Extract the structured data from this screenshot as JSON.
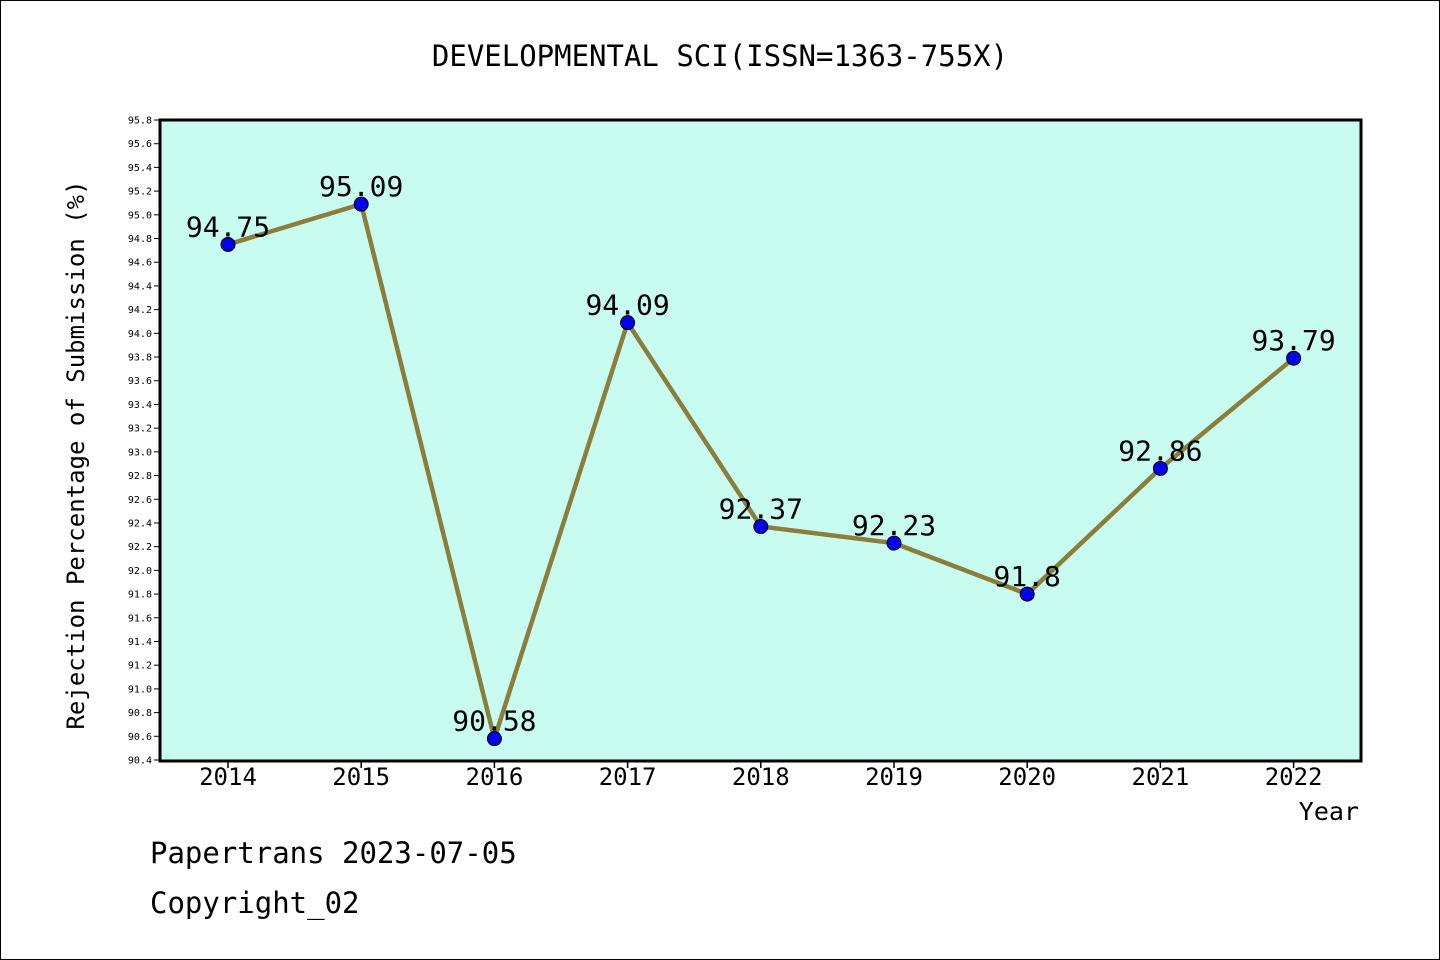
{
  "chart_data": {
    "type": "line",
    "title": "DEVELOPMENTAL SCI(ISSN=1363-755X)",
    "xlabel": "Year",
    "ylabel": "Rejection Percentage of Submission (%)",
    "categories": [
      "2014",
      "2015",
      "2016",
      "2017",
      "2018",
      "2019",
      "2020",
      "2021",
      "2022"
    ],
    "series": [
      {
        "values": [
          94.75,
          95.09,
          90.58,
          94.09,
          92.37,
          92.23,
          91.8,
          92.86,
          93.79
        ],
        "labels": [
          "94.75",
          "95.09",
          "90.58",
          "94.09",
          "92.37",
          "92.23",
          "91.8",
          "92.86",
          "93.79"
        ],
        "line_color": "#8b7d3a",
        "marker_color": "#0000ee"
      }
    ],
    "ylim": [
      90.4,
      95.8
    ],
    "ytick_step": 0.2,
    "plot_background": "#c8fcf0",
    "grid": false,
    "legend": "none"
  },
  "footer": {
    "line1": "Papertrans 2023-07-05",
    "line2": "Copyright_02"
  }
}
